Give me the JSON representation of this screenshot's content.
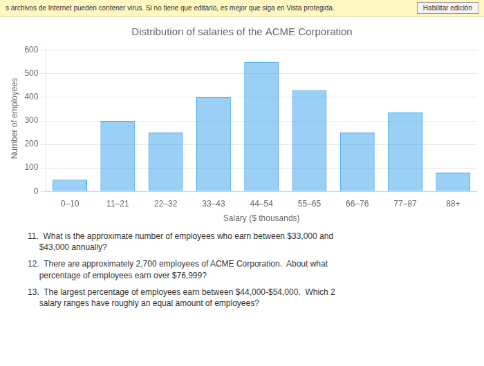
{
  "chart_data": {
    "type": "bar",
    "title": "Distribution of salaries of the ACME Corporation",
    "categories": [
      "0–10",
      "11–21",
      "22–32",
      "33–43",
      "44–54",
      "55–65",
      "66–76",
      "77–87",
      "88+"
    ],
    "values": [
      50,
      300,
      250,
      400,
      550,
      430,
      250,
      335,
      80
    ],
    "xlabel": "Salary ($ thousands)",
    "ylabel": "Number of employees",
    "ylim": [
      0,
      620
    ],
    "yticks": [
      0,
      100,
      200,
      300,
      400,
      500,
      600
    ],
    "grid": true,
    "annotations": [
      "s archivos de Internet pueden contener virus. Si no tiene que editarlo, es mejor que siga en Vista protegida.",
      "Habilitar edición",
      "11.  What is the approximate number of employees who earn between $33,000 and\n     $43,000 annually?",
      "12.  There are approximately 2,700 employees of ACME Corporation.  About what\n     percentage of employees earn over $76,999?",
      "13.  The largest percentage of employees earn between $44,000-$54,000.  Which 2\n     salary ranges have roughly an equal amount of employees?"
    ]
  }
}
